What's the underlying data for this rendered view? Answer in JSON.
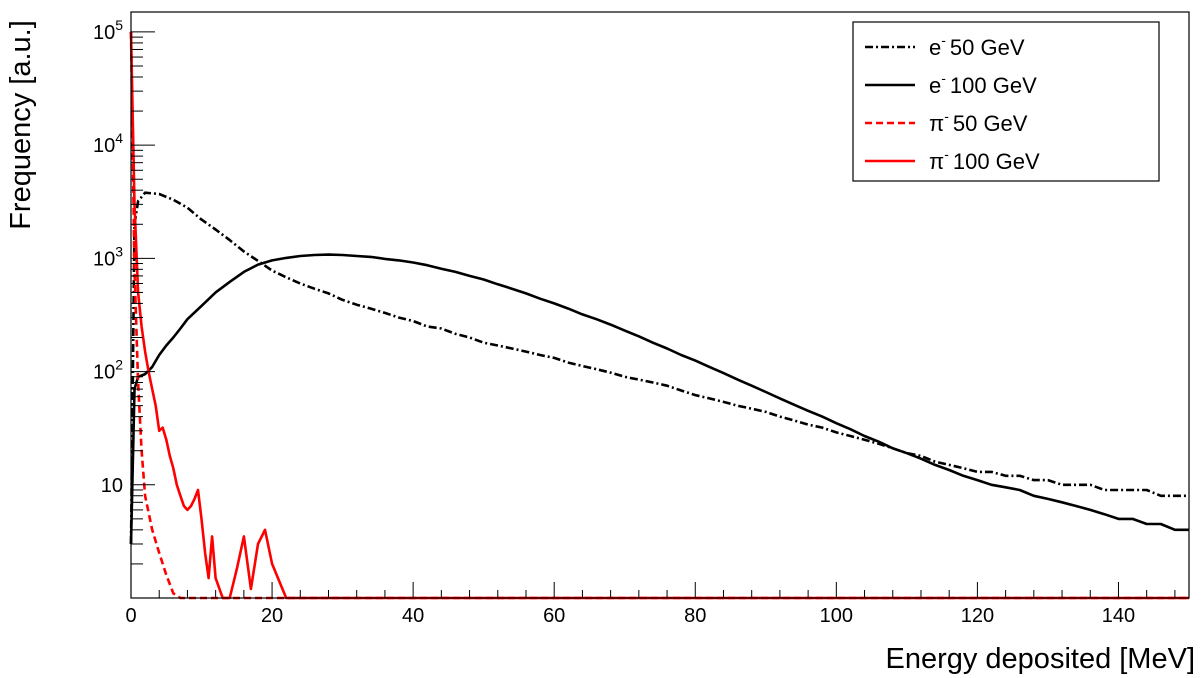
{
  "chart_data": {
    "type": "line",
    "title": "",
    "xlabel": "Energy deposited [MeV]",
    "ylabel": "Frequency [a.u.]",
    "xlim": [
      0,
      150
    ],
    "ylim": [
      1,
      150000
    ],
    "y_scale": "log",
    "grid": false,
    "legend_position": "top-right",
    "x_ticks": [
      "0",
      "20",
      "40",
      "60",
      "80",
      "100",
      "120",
      "140"
    ],
    "y_ticks": [
      {
        "value": 10,
        "label": "10"
      },
      {
        "value": 100,
        "base": "10",
        "exp": "2"
      },
      {
        "value": 1000,
        "base": "10",
        "exp": "3"
      },
      {
        "value": 10000,
        "base": "10",
        "exp": "4"
      },
      {
        "value": 100000,
        "base": "10",
        "exp": "5"
      }
    ],
    "series": [
      {
        "name": "50 GeV",
        "particle": "e",
        "charge": "-",
        "color": "#000000",
        "style": "dashdot",
        "points": [
          [
            0,
            3
          ],
          [
            0.5,
            2000
          ],
          [
            1,
            3200
          ],
          [
            2,
            3800
          ],
          [
            4,
            3700
          ],
          [
            6,
            3300
          ],
          [
            8,
            2800
          ],
          [
            10,
            2200
          ],
          [
            12,
            1800
          ],
          [
            14,
            1450
          ],
          [
            16,
            1150
          ],
          [
            18,
            950
          ],
          [
            20,
            780
          ],
          [
            22,
            680
          ],
          [
            24,
            600
          ],
          [
            26,
            540
          ],
          [
            28,
            490
          ],
          [
            30,
            430
          ],
          [
            32,
            390
          ],
          [
            34,
            360
          ],
          [
            36,
            330
          ],
          [
            38,
            300
          ],
          [
            40,
            280
          ],
          [
            42,
            250
          ],
          [
            44,
            240
          ],
          [
            46,
            215
          ],
          [
            48,
            200
          ],
          [
            50,
            180
          ],
          [
            52,
            170
          ],
          [
            54,
            160
          ],
          [
            56,
            150
          ],
          [
            58,
            140
          ],
          [
            60,
            132
          ],
          [
            62,
            120
          ],
          [
            64,
            112
          ],
          [
            66,
            105
          ],
          [
            68,
            98
          ],
          [
            70,
            90
          ],
          [
            72,
            85
          ],
          [
            74,
            80
          ],
          [
            76,
            75
          ],
          [
            78,
            68
          ],
          [
            80,
            62
          ],
          [
            82,
            58
          ],
          [
            84,
            54
          ],
          [
            86,
            50
          ],
          [
            88,
            47
          ],
          [
            90,
            44
          ],
          [
            92,
            40
          ],
          [
            94,
            37
          ],
          [
            96,
            34
          ],
          [
            98,
            32
          ],
          [
            100,
            29
          ],
          [
            102,
            27
          ],
          [
            104,
            25
          ],
          [
            106,
            23
          ],
          [
            108,
            21
          ],
          [
            110,
            19
          ],
          [
            112,
            18
          ],
          [
            114,
            16
          ],
          [
            116,
            15
          ],
          [
            118,
            14
          ],
          [
            120,
            13
          ],
          [
            122,
            13
          ],
          [
            124,
            12
          ],
          [
            126,
            12
          ],
          [
            128,
            11
          ],
          [
            130,
            11
          ],
          [
            132,
            10
          ],
          [
            134,
            10
          ],
          [
            136,
            10
          ],
          [
            138,
            9
          ],
          [
            140,
            9
          ],
          [
            142,
            9
          ],
          [
            144,
            9
          ],
          [
            146,
            8
          ],
          [
            148,
            8
          ],
          [
            150,
            8
          ]
        ]
      },
      {
        "name": "100 GeV",
        "particle": "e",
        "charge": "-",
        "color": "#000000",
        "style": "solid",
        "points": [
          [
            0,
            3
          ],
          [
            0.5,
            70
          ],
          [
            1,
            90
          ],
          [
            2,
            95
          ],
          [
            3,
            110
          ],
          [
            4,
            140
          ],
          [
            5,
            170
          ],
          [
            6,
            200
          ],
          [
            7,
            240
          ],
          [
            8,
            290
          ],
          [
            10,
            380
          ],
          [
            12,
            500
          ],
          [
            14,
            620
          ],
          [
            16,
            760
          ],
          [
            18,
            880
          ],
          [
            20,
            960
          ],
          [
            22,
            1010
          ],
          [
            24,
            1050
          ],
          [
            26,
            1070
          ],
          [
            28,
            1080
          ],
          [
            30,
            1070
          ],
          [
            32,
            1050
          ],
          [
            34,
            1030
          ],
          [
            36,
            990
          ],
          [
            38,
            960
          ],
          [
            40,
            920
          ],
          [
            42,
            870
          ],
          [
            44,
            810
          ],
          [
            46,
            760
          ],
          [
            48,
            700
          ],
          [
            50,
            650
          ],
          [
            52,
            590
          ],
          [
            54,
            540
          ],
          [
            56,
            490
          ],
          [
            58,
            440
          ],
          [
            60,
            400
          ],
          [
            62,
            360
          ],
          [
            64,
            320
          ],
          [
            66,
            290
          ],
          [
            68,
            260
          ],
          [
            70,
            230
          ],
          [
            72,
            205
          ],
          [
            74,
            180
          ],
          [
            76,
            160
          ],
          [
            78,
            140
          ],
          [
            80,
            125
          ],
          [
            82,
            110
          ],
          [
            84,
            97
          ],
          [
            86,
            85
          ],
          [
            88,
            75
          ],
          [
            90,
            66
          ],
          [
            92,
            58
          ],
          [
            94,
            51
          ],
          [
            96,
            45
          ],
          [
            98,
            40
          ],
          [
            100,
            35
          ],
          [
            102,
            31
          ],
          [
            104,
            27
          ],
          [
            106,
            24
          ],
          [
            108,
            21
          ],
          [
            110,
            19
          ],
          [
            112,
            17
          ],
          [
            114,
            15
          ],
          [
            116,
            13.5
          ],
          [
            118,
            12
          ],
          [
            120,
            11
          ],
          [
            122,
            10
          ],
          [
            124,
            9.5
          ],
          [
            126,
            9
          ],
          [
            128,
            8
          ],
          [
            130,
            7.5
          ],
          [
            132,
            7
          ],
          [
            134,
            6.5
          ],
          [
            136,
            6
          ],
          [
            138,
            5.5
          ],
          [
            140,
            5
          ],
          [
            142,
            5
          ],
          [
            144,
            4.5
          ],
          [
            146,
            4.5
          ],
          [
            148,
            4
          ],
          [
            150,
            4
          ]
        ]
      },
      {
        "name": "50 GeV",
        "particle": "π",
        "charge": "-",
        "color": "#ff0000",
        "style": "dashed",
        "points": [
          [
            0,
            100000
          ],
          [
            0.5,
            800
          ],
          [
            1,
            80
          ],
          [
            1.5,
            20
          ],
          [
            2,
            8
          ],
          [
            3,
            4
          ],
          [
            4,
            2.5
          ],
          [
            5,
            1.6
          ],
          [
            6,
            1.1
          ],
          [
            7,
            1
          ],
          [
            150,
            1
          ]
        ]
      },
      {
        "name": "100 GeV",
        "particle": "π",
        "charge": "-",
        "color": "#ff0000",
        "style": "solid",
        "points": [
          [
            0,
            100000
          ],
          [
            0.5,
            3000
          ],
          [
            1,
            500
          ],
          [
            1.5,
            250
          ],
          [
            2,
            150
          ],
          [
            2.5,
            100
          ],
          [
            3,
            70
          ],
          [
            3.5,
            50
          ],
          [
            4,
            30
          ],
          [
            4.5,
            32
          ],
          [
            5,
            25
          ],
          [
            5.5,
            18
          ],
          [
            6,
            14
          ],
          [
            6.5,
            10
          ],
          [
            7,
            8
          ],
          [
            7.5,
            6.5
          ],
          [
            8,
            6
          ],
          [
            8.5,
            6.5
          ],
          [
            9,
            7.5
          ],
          [
            9.5,
            9
          ],
          [
            10,
            5
          ],
          [
            10.5,
            2.5
          ],
          [
            11,
            1.5
          ],
          [
            11.5,
            3.5
          ],
          [
            12,
            1.5
          ],
          [
            13,
            1
          ],
          [
            14,
            1
          ],
          [
            15,
            1.8
          ],
          [
            16,
            3.5
          ],
          [
            17,
            1.2
          ],
          [
            18,
            3
          ],
          [
            19,
            4
          ],
          [
            20,
            2
          ],
          [
            22,
            1
          ],
          [
            150,
            1
          ]
        ]
      }
    ]
  }
}
